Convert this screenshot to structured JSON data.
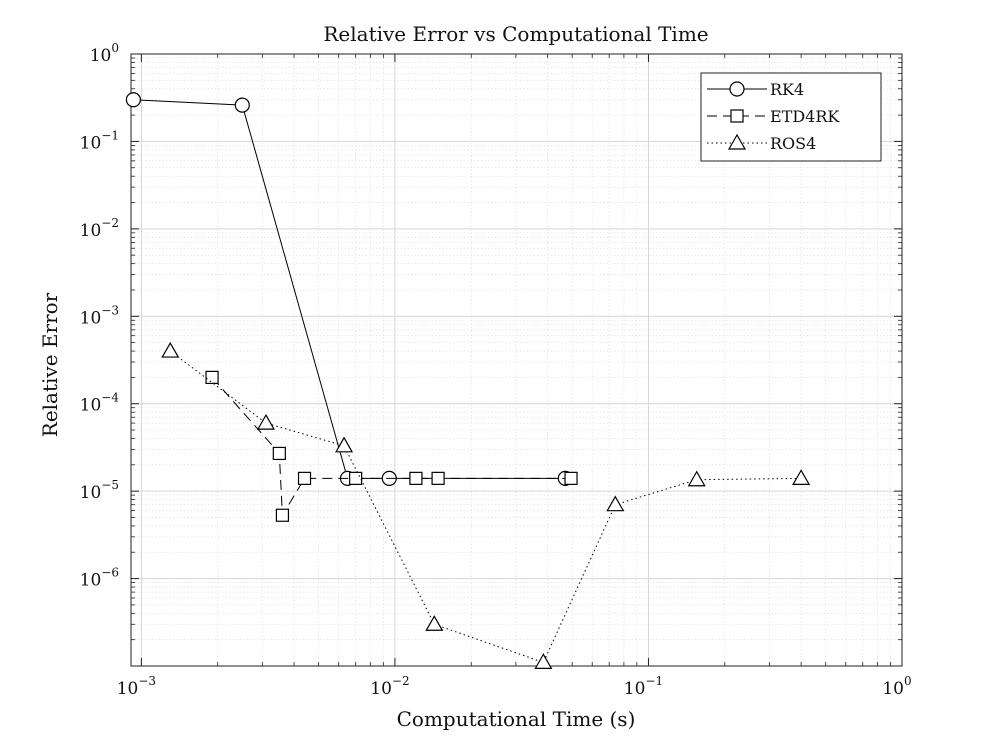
{
  "chart_data": {
    "type": "line",
    "title": "Relative Error vs Computational Time",
    "xlabel": "Computational Time (s)",
    "ylabel": "Relative Error",
    "xscale": "log",
    "yscale": "log",
    "xlim": [
      0.00091,
      1
    ],
    "ylim": [
      1e-07,
      1
    ],
    "grid": true,
    "minor_grid": true,
    "legend_position": "top-right",
    "x_ticks": [
      {
        "value": 0.001,
        "base": "10",
        "exp": "−3"
      },
      {
        "value": 0.01,
        "base": "10",
        "exp": "−2"
      },
      {
        "value": 0.1,
        "base": "10",
        "exp": "−1"
      },
      {
        "value": 1,
        "base": "10",
        "exp": "0"
      }
    ],
    "y_ticks": [
      {
        "value": 1e-06,
        "base": "10",
        "exp": "−6"
      },
      {
        "value": 1e-05,
        "base": "10",
        "exp": "−5"
      },
      {
        "value": 0.0001,
        "base": "10",
        "exp": "−4"
      },
      {
        "value": 0.001,
        "base": "10",
        "exp": "−3"
      },
      {
        "value": 0.01,
        "base": "10",
        "exp": "−2"
      },
      {
        "value": 0.1,
        "base": "10",
        "exp": "−1"
      },
      {
        "value": 1,
        "base": "10",
        "exp": "0"
      }
    ],
    "series": [
      {
        "name": "RK4",
        "marker": "circle",
        "line_style": "solid",
        "color": "#000000",
        "x": [
          0.00093,
          0.0025,
          0.0065,
          0.0095,
          0.047
        ],
        "y": [
          0.3,
          0.26,
          1.4e-05,
          1.4e-05,
          1.4e-05
        ]
      },
      {
        "name": "ETD4RK",
        "marker": "square",
        "line_style": "dashed",
        "color": "#000000",
        "x": [
          0.0019,
          0.0035,
          0.0036,
          0.0044,
          0.007,
          0.0121,
          0.0148,
          0.0495
        ],
        "y": [
          0.0002,
          2.7e-05,
          5.3e-06,
          1.4e-05,
          1.4e-05,
          1.4e-05,
          1.4e-05,
          1.4e-05
        ]
      },
      {
        "name": "ROS4",
        "marker": "triangle",
        "line_style": "dotted",
        "color": "#000000",
        "x": [
          0.0013,
          0.0031,
          0.0063,
          0.0143,
          0.0385,
          0.074,
          0.155,
          0.4
        ],
        "y": [
          0.0004,
          6e-05,
          3.3e-05,
          3e-07,
          1.1e-07,
          7e-06,
          1.35e-05,
          1.4e-05
        ]
      }
    ]
  }
}
